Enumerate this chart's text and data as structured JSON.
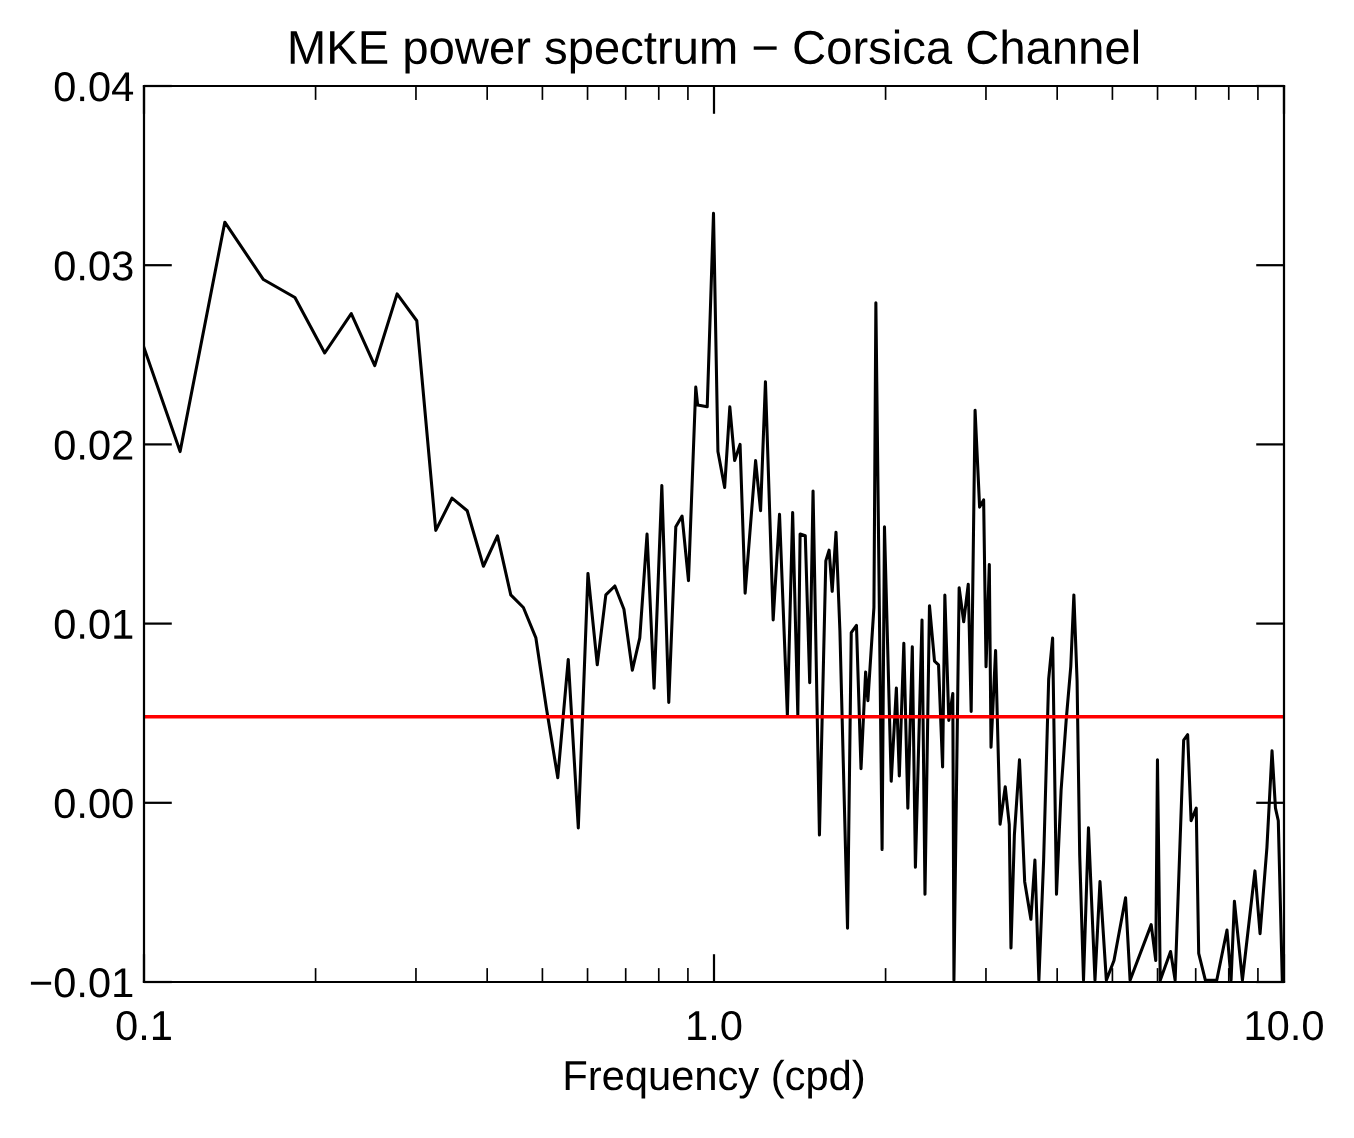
{
  "chart_data": {
    "type": "line",
    "title": "MKE power spectrum − Corsica Channel",
    "xlabel": "Frequency (cpd)",
    "log": "x",
    "xlim": [
      0.1,
      10
    ],
    "xticks": [
      {
        "value": 0.1,
        "label": "0.1"
      },
      {
        "value": 1,
        "label": "1.0"
      },
      {
        "value": 10,
        "label": "10.0"
      }
    ],
    "ylim": [
      -0.01,
      0.04
    ],
    "yticks": [
      {
        "value": 0.04,
        "label": "0.04"
      },
      {
        "value": 0.03,
        "label": "0.03"
      },
      {
        "value": 0.02,
        "label": "0.02"
      },
      {
        "value": 0.01,
        "label": "0.01"
      },
      {
        "value": 0.0,
        "label": "0.00"
      },
      {
        "value": -0.01,
        "label": "−0.01"
      }
    ],
    "grid": false,
    "legend": false,
    "series": [
      {
        "color": "#000000",
        "x": [
          0.1,
          0.1157,
          0.1386,
          0.162,
          0.184,
          0.2075,
          0.231,
          0.254,
          0.278,
          0.301,
          0.325,
          0.347,
          0.369,
          0.394,
          0.417,
          0.44,
          0.463,
          0.487,
          0.508,
          0.532,
          0.555,
          0.578,
          0.601,
          0.624,
          0.646,
          0.67,
          0.695,
          0.719,
          0.741,
          0.763,
          0.785,
          0.81,
          0.833,
          0.857,
          0.879,
          0.902,
          0.929,
          0.936,
          0.973,
          0.998,
          1.016,
          1.044,
          1.066,
          1.087,
          1.111,
          1.134,
          1.183,
          1.207,
          1.231,
          1.27,
          1.303,
          1.345,
          1.374,
          1.403,
          1.416,
          1.446,
          1.472,
          1.492,
          1.531,
          1.571,
          1.592,
          1.612,
          1.637,
          1.663,
          1.715,
          1.741,
          1.778,
          1.811,
          1.845,
          1.862,
          1.908,
          1.923,
          1.972,
          1.991,
          2.046,
          2.089,
          2.114,
          2.153,
          2.188,
          2.228,
          2.256,
          2.317,
          2.345,
          2.388,
          2.437,
          2.477,
          2.518,
          2.541,
          2.582,
          2.624,
          2.636,
          2.692,
          2.742,
          2.793,
          2.826,
          2.871,
          2.924,
          2.972,
          3.001,
          3.041,
          3.062,
          3.119,
          3.176,
          3.243,
          3.296,
          3.319,
          3.365,
          3.435,
          3.508,
          3.597,
          3.656,
          3.715,
          3.787,
          3.865,
          3.927,
          3.989,
          4.064,
          4.148,
          4.226,
          4.279,
          4.335,
          4.381,
          4.449,
          4.539,
          4.66,
          4.755,
          4.879,
          5.032,
          5.273,
          5.37,
          5.848,
          5.957,
          5.998,
          6.066,
          6.324,
          6.442,
          6.668,
          6.776,
          6.871,
          7.015,
          7.085,
          7.278,
          7.621,
          7.943,
          8.075,
          8.185,
          8.453,
          8.892,
          9.078,
          9.333,
          9.528,
          9.661,
          9.772,
          9.931
        ],
        "values": [
          0.0254,
          0.0196,
          0.0324,
          0.0292,
          0.0282,
          0.0251,
          0.0273,
          0.0244,
          0.0284,
          0.0269,
          0.0152,
          0.017,
          0.0163,
          0.0132,
          0.0149,
          0.0116,
          0.0109,
          0.0092,
          0.0053,
          0.0014,
          0.008,
          -0.0014,
          0.0128,
          0.0077,
          0.0116,
          0.0121,
          0.0108,
          0.0074,
          0.0092,
          0.015,
          0.0064,
          0.0177,
          0.0056,
          0.0154,
          0.016,
          0.0124,
          0.0232,
          0.0222,
          0.0221,
          0.0329,
          0.0196,
          0.0176,
          0.0221,
          0.0191,
          0.02,
          0.0117,
          0.0191,
          0.0163,
          0.0235,
          0.0102,
          0.0161,
          0.0049,
          0.0162,
          0.0049,
          0.015,
          0.0149,
          0.0067,
          0.0174,
          -0.0018,
          0.0135,
          0.0141,
          0.0118,
          0.0151,
          0.0096,
          -0.007,
          0.0095,
          0.0099,
          0.0019,
          0.0073,
          0.0057,
          0.0109,
          0.0279,
          -0.0026,
          0.0154,
          0.0012,
          0.0064,
          0.0015,
          0.0089,
          -0.0003,
          0.0087,
          -0.0036,
          0.0102,
          -0.0051,
          0.011,
          0.0079,
          0.0077,
          0.002,
          0.0116,
          0.0046,
          0.0061,
          -0.0099,
          0.012,
          0.0101,
          0.0122,
          0.0051,
          0.0219,
          0.0165,
          0.0169,
          0.0076,
          0.0133,
          0.0031,
          0.0085,
          -0.0012,
          0.0009,
          -0.0012,
          -0.0081,
          -0.0018,
          0.0024,
          -0.0044,
          -0.0065,
          -0.0032,
          -0.0099,
          -0.0032,
          0.0069,
          0.0092,
          -0.0051,
          0.0007,
          0.0046,
          0.0076,
          0.0116,
          0.0068,
          -0.0029,
          -0.0099,
          -0.0014,
          -0.0099,
          -0.0044,
          -0.0099,
          -0.0088,
          -0.0053,
          -0.0099,
          -0.0068,
          -0.0088,
          0.0024,
          -0.0099,
          -0.0083,
          -0.0099,
          0.0035,
          0.0038,
          -0.001,
          -0.0003,
          -0.0084,
          -0.0099,
          -0.0099,
          -0.0071,
          -0.0099,
          -0.0055,
          -0.0099,
          -0.0038,
          -0.0073,
          -0.0025,
          0.0029,
          -0.0003,
          -0.001,
          -0.0099
        ]
      }
    ],
    "ref_lines": [
      {
        "axis": "y",
        "value": 0.0048,
        "color": "#ff0000"
      }
    ]
  }
}
